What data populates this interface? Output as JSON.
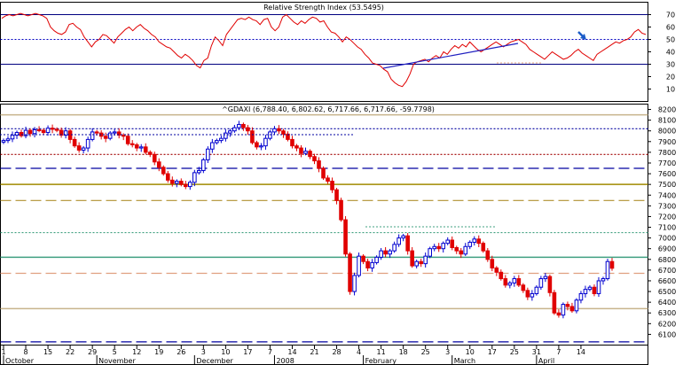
{
  "chart_data": [
    {
      "type": "line",
      "title": "Relative Strength Index (53.5495)",
      "ylim": [
        0,
        80
      ],
      "y_ticks": [
        10,
        20,
        30,
        40,
        50,
        60,
        70
      ],
      "reference_lines": [
        70,
        50,
        30
      ],
      "series": [
        {
          "values": [
            67,
            69,
            70,
            69,
            70,
            71,
            70,
            69,
            70,
            71,
            70,
            69,
            67,
            60,
            57,
            55,
            54,
            56,
            62,
            63,
            60,
            58,
            52,
            48,
            44,
            48,
            50,
            54,
            53,
            50,
            47,
            52,
            55,
            58,
            60,
            57,
            60,
            62,
            59,
            57,
            54,
            52,
            48,
            46,
            44,
            43,
            40,
            37,
            35,
            38,
            36,
            33,
            29,
            27,
            33,
            35,
            45,
            52,
            49,
            45,
            54,
            58,
            62,
            66,
            67,
            66,
            68,
            66,
            65,
            62,
            66,
            67,
            60,
            57,
            60,
            68,
            70,
            67,
            64,
            62,
            65,
            63,
            66,
            68,
            67,
            64,
            65,
            60,
            56,
            55,
            52,
            48,
            52,
            50,
            47,
            44,
            42,
            38,
            35,
            31,
            30,
            29,
            26,
            24,
            18,
            15,
            13,
            12,
            16,
            22,
            30,
            32,
            33,
            34,
            32,
            35,
            37,
            35,
            40,
            38,
            42,
            45,
            43,
            46,
            44,
            48,
            45,
            42,
            40,
            42,
            44,
            46,
            48,
            46,
            44,
            46,
            48,
            49,
            50,
            48,
            46,
            42,
            40,
            38,
            36,
            34,
            37,
            40,
            38,
            36,
            34,
            35,
            37,
            40,
            42,
            39,
            37,
            35,
            33,
            38,
            40,
            42,
            44,
            46,
            48,
            47,
            49,
            50,
            52,
            56,
            58,
            55,
            54
          ]
        }
      ],
      "annotations": [
        "trendline",
        "arrow"
      ]
    },
    {
      "type": "candlestick",
      "title": "^GDAXI (6,788.40, 6,802.62, 6,717.66, 6,717.66, -59.7798)",
      "ylim": [
        6000,
        8250
      ],
      "y_ticks": [
        6100,
        6200,
        6300,
        6400,
        6500,
        6600,
        6700,
        6800,
        6900,
        7000,
        7100,
        7200,
        7300,
        7400,
        7500,
        7600,
        7700,
        7800,
        7900,
        8000,
        8100,
        8200
      ],
      "x_labels": [
        {
          "text": "1",
          "i": 0
        },
        {
          "text": "8",
          "i": 5
        },
        {
          "text": "15",
          "i": 10
        },
        {
          "text": "22",
          "i": 15
        },
        {
          "text": "29",
          "i": 20
        },
        {
          "text": "5",
          "i": 25
        },
        {
          "text": "12",
          "i": 30
        },
        {
          "text": "19",
          "i": 35
        },
        {
          "text": "26",
          "i": 40
        },
        {
          "text": "3",
          "i": 45
        },
        {
          "text": "10",
          "i": 50
        },
        {
          "text": "17",
          "i": 55
        },
        {
          "text": "7",
          "i": 60
        },
        {
          "text": "14",
          "i": 65
        },
        {
          "text": "21",
          "i": 70
        },
        {
          "text": "28",
          "i": 75
        },
        {
          "text": "4",
          "i": 80
        },
        {
          "text": "11",
          "i": 85
        },
        {
          "text": "18",
          "i": 90
        },
        {
          "text": "25",
          "i": 95
        },
        {
          "text": "3",
          "i": 100
        },
        {
          "text": "10",
          "i": 105
        },
        {
          "text": "17",
          "i": 110
        },
        {
          "text": "25",
          "i": 115
        },
        {
          "text": "31",
          "i": 120
        },
        {
          "text": "7",
          "i": 125
        },
        {
          "text": "14",
          "i": 130
        }
      ],
      "month_labels": [
        {
          "text": "October",
          "i": 0
        },
        {
          "text": "November",
          "i": 21
        },
        {
          "text": "December",
          "i": 43
        },
        {
          "text": "2008",
          "i": 61
        },
        {
          "text": "February",
          "i": 81
        },
        {
          "text": "March",
          "i": 101
        },
        {
          "text": "April",
          "i": 120
        }
      ],
      "levels": [
        {
          "value": 8150,
          "color": "#c8b48c",
          "style": "solid"
        },
        {
          "value": 8020,
          "color": "#0000a0",
          "style": "dotted"
        },
        {
          "value": 7780,
          "color": "#a00000",
          "style": "dotted"
        },
        {
          "value": 7650,
          "color": "#0000a0",
          "style": "dashed"
        },
        {
          "value": 7500,
          "color": "#a08a00",
          "style": "solid"
        },
        {
          "value": 7350,
          "color": "#b09030",
          "style": "dashed"
        },
        {
          "value": 7050,
          "color": "#40a080",
          "style": "dotted"
        },
        {
          "value": 6820,
          "color": "#40a080",
          "style": "solid"
        },
        {
          "value": 6670,
          "color": "#e0a080",
          "style": "dashed"
        },
        {
          "value": 6340,
          "color": "#c8b48c",
          "style": "solid"
        },
        {
          "value": 6030,
          "color": "#0000a0",
          "style": "dashed"
        }
      ],
      "closes": [
        7910,
        7925,
        7960,
        7985,
        7955,
        8005,
        7975,
        8010,
        8005,
        7985,
        8025,
        8015,
        8005,
        7960,
        8000,
        7920,
        7860,
        7820,
        7840,
        7920,
        7990,
        7980,
        7950,
        7930,
        7980,
        7990,
        7960,
        7950,
        7880,
        7870,
        7840,
        7850,
        7800,
        7780,
        7710,
        7660,
        7600,
        7540,
        7510,
        7530,
        7500,
        7480,
        7520,
        7610,
        7630,
        7730,
        7830,
        7890,
        7910,
        7930,
        7980,
        8000,
        8030,
        8060,
        8030,
        8000,
        7890,
        7850,
        7860,
        7930,
        7990,
        8020,
        8000,
        7970,
        7920,
        7860,
        7840,
        7790,
        7810,
        7760,
        7720,
        7650,
        7560,
        7530,
        7450,
        7350,
        7170,
        6850,
        6500,
        6650,
        6830,
        6780,
        6720,
        6770,
        6820,
        6880,
        6850,
        6880,
        6940,
        7000,
        7020,
        6880,
        6740,
        6780,
        6760,
        6830,
        6900,
        6920,
        6900,
        6950,
        6980,
        6910,
        6880,
        6850,
        6920,
        6960,
        6990,
        6950,
        6880,
        6800,
        6720,
        6680,
        6620,
        6560,
        6580,
        6620,
        6560,
        6510,
        6450,
        6480,
        6540,
        6620,
        6640,
        6490,
        6300,
        6280,
        6380,
        6360,
        6320,
        6420,
        6480,
        6520,
        6540,
        6480,
        6600,
        6620,
        6780,
        6717.66
      ]
    }
  ]
}
